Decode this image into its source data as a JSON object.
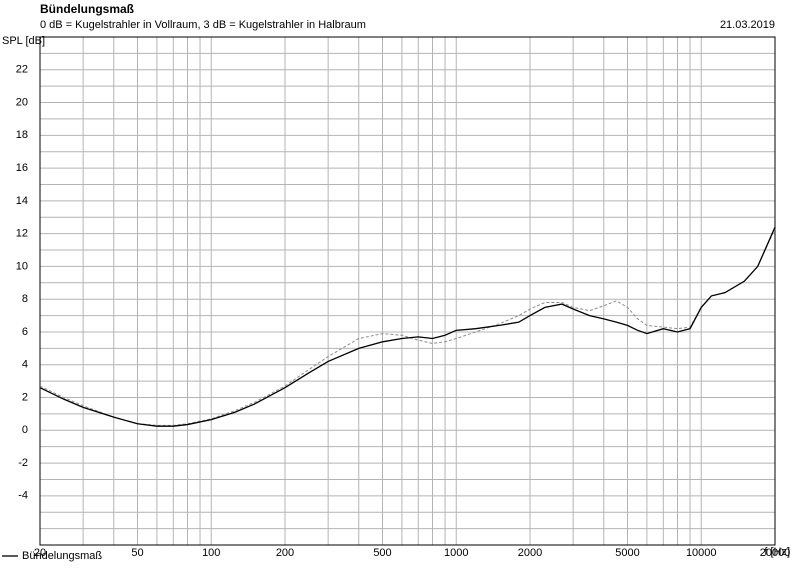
{
  "chart_data": {
    "type": "line",
    "title": "Bündelungsmaß",
    "subtitle": "0 dB = Kugelstrahler in Vollraum, 3 dB = Kugelstrahler in Halbraum",
    "date": "21.03.2019",
    "ylabel": "SPL [dB]",
    "xlabel": "f [Hz]",
    "xscale": "log",
    "grid": true,
    "legend": "bottom-left",
    "xlim": [
      20,
      20000
    ],
    "ylim": [
      -7,
      24
    ],
    "xticks": [
      20,
      50,
      100,
      200,
      500,
      1000,
      2000,
      5000,
      10000,
      20000
    ],
    "x_minor_ticks": [
      30,
      40,
      60,
      70,
      80,
      90,
      300,
      400,
      600,
      700,
      800,
      900,
      3000,
      4000,
      6000,
      7000,
      8000,
      9000
    ],
    "yticks": [
      -4,
      -2,
      0,
      2,
      4,
      6,
      8,
      10,
      12,
      14,
      16,
      18,
      20,
      22
    ],
    "y_minor_ticks": [
      -7,
      -6,
      -5,
      -3,
      -1,
      1,
      3,
      5,
      7,
      9,
      11,
      13,
      15,
      17,
      19,
      21,
      23,
      24
    ],
    "x": [
      20,
      25,
      30,
      40,
      50,
      60,
      70,
      80,
      100,
      125,
      150,
      200,
      250,
      300,
      400,
      500,
      600,
      700,
      800,
      900,
      1000,
      1200,
      1500,
      1800,
      2000,
      2300,
      2700,
      3000,
      3500,
      4000,
      4500,
      5000,
      5500,
      6000,
      7000,
      8000,
      9000,
      10000,
      11000,
      12500,
      15000,
      17000,
      20000
    ],
    "series": [
      {
        "name": "Bündelungsmaß",
        "color": "#000000",
        "dash": "solid",
        "values": [
          2.6,
          1.9,
          1.4,
          0.8,
          0.4,
          0.25,
          0.25,
          0.35,
          0.65,
          1.1,
          1.6,
          2.6,
          3.5,
          4.2,
          5.0,
          5.4,
          5.6,
          5.7,
          5.6,
          5.8,
          6.1,
          6.2,
          6.4,
          6.6,
          7.0,
          7.5,
          7.7,
          7.4,
          7.0,
          6.8,
          6.6,
          6.4,
          6.1,
          5.9,
          6.2,
          6.0,
          6.2,
          7.5,
          8.2,
          8.4,
          9.1,
          10.0,
          12.4
        ]
      },
      {
        "color": "#8c8c8c",
        "dash": "dashed",
        "values": [
          2.7,
          2.0,
          1.5,
          0.8,
          0.4,
          0.3,
          0.3,
          0.4,
          0.7,
          1.2,
          1.7,
          2.7,
          3.7,
          4.5,
          5.6,
          5.9,
          5.8,
          5.5,
          5.3,
          5.4,
          5.6,
          6.0,
          6.5,
          7.0,
          7.4,
          7.8,
          7.8,
          7.5,
          7.3,
          7.6,
          7.9,
          7.5,
          6.8,
          6.4,
          6.3,
          6.2,
          6.3,
          7.5,
          8.2,
          8.4,
          9.1,
          10.0,
          12.3
        ]
      }
    ]
  }
}
